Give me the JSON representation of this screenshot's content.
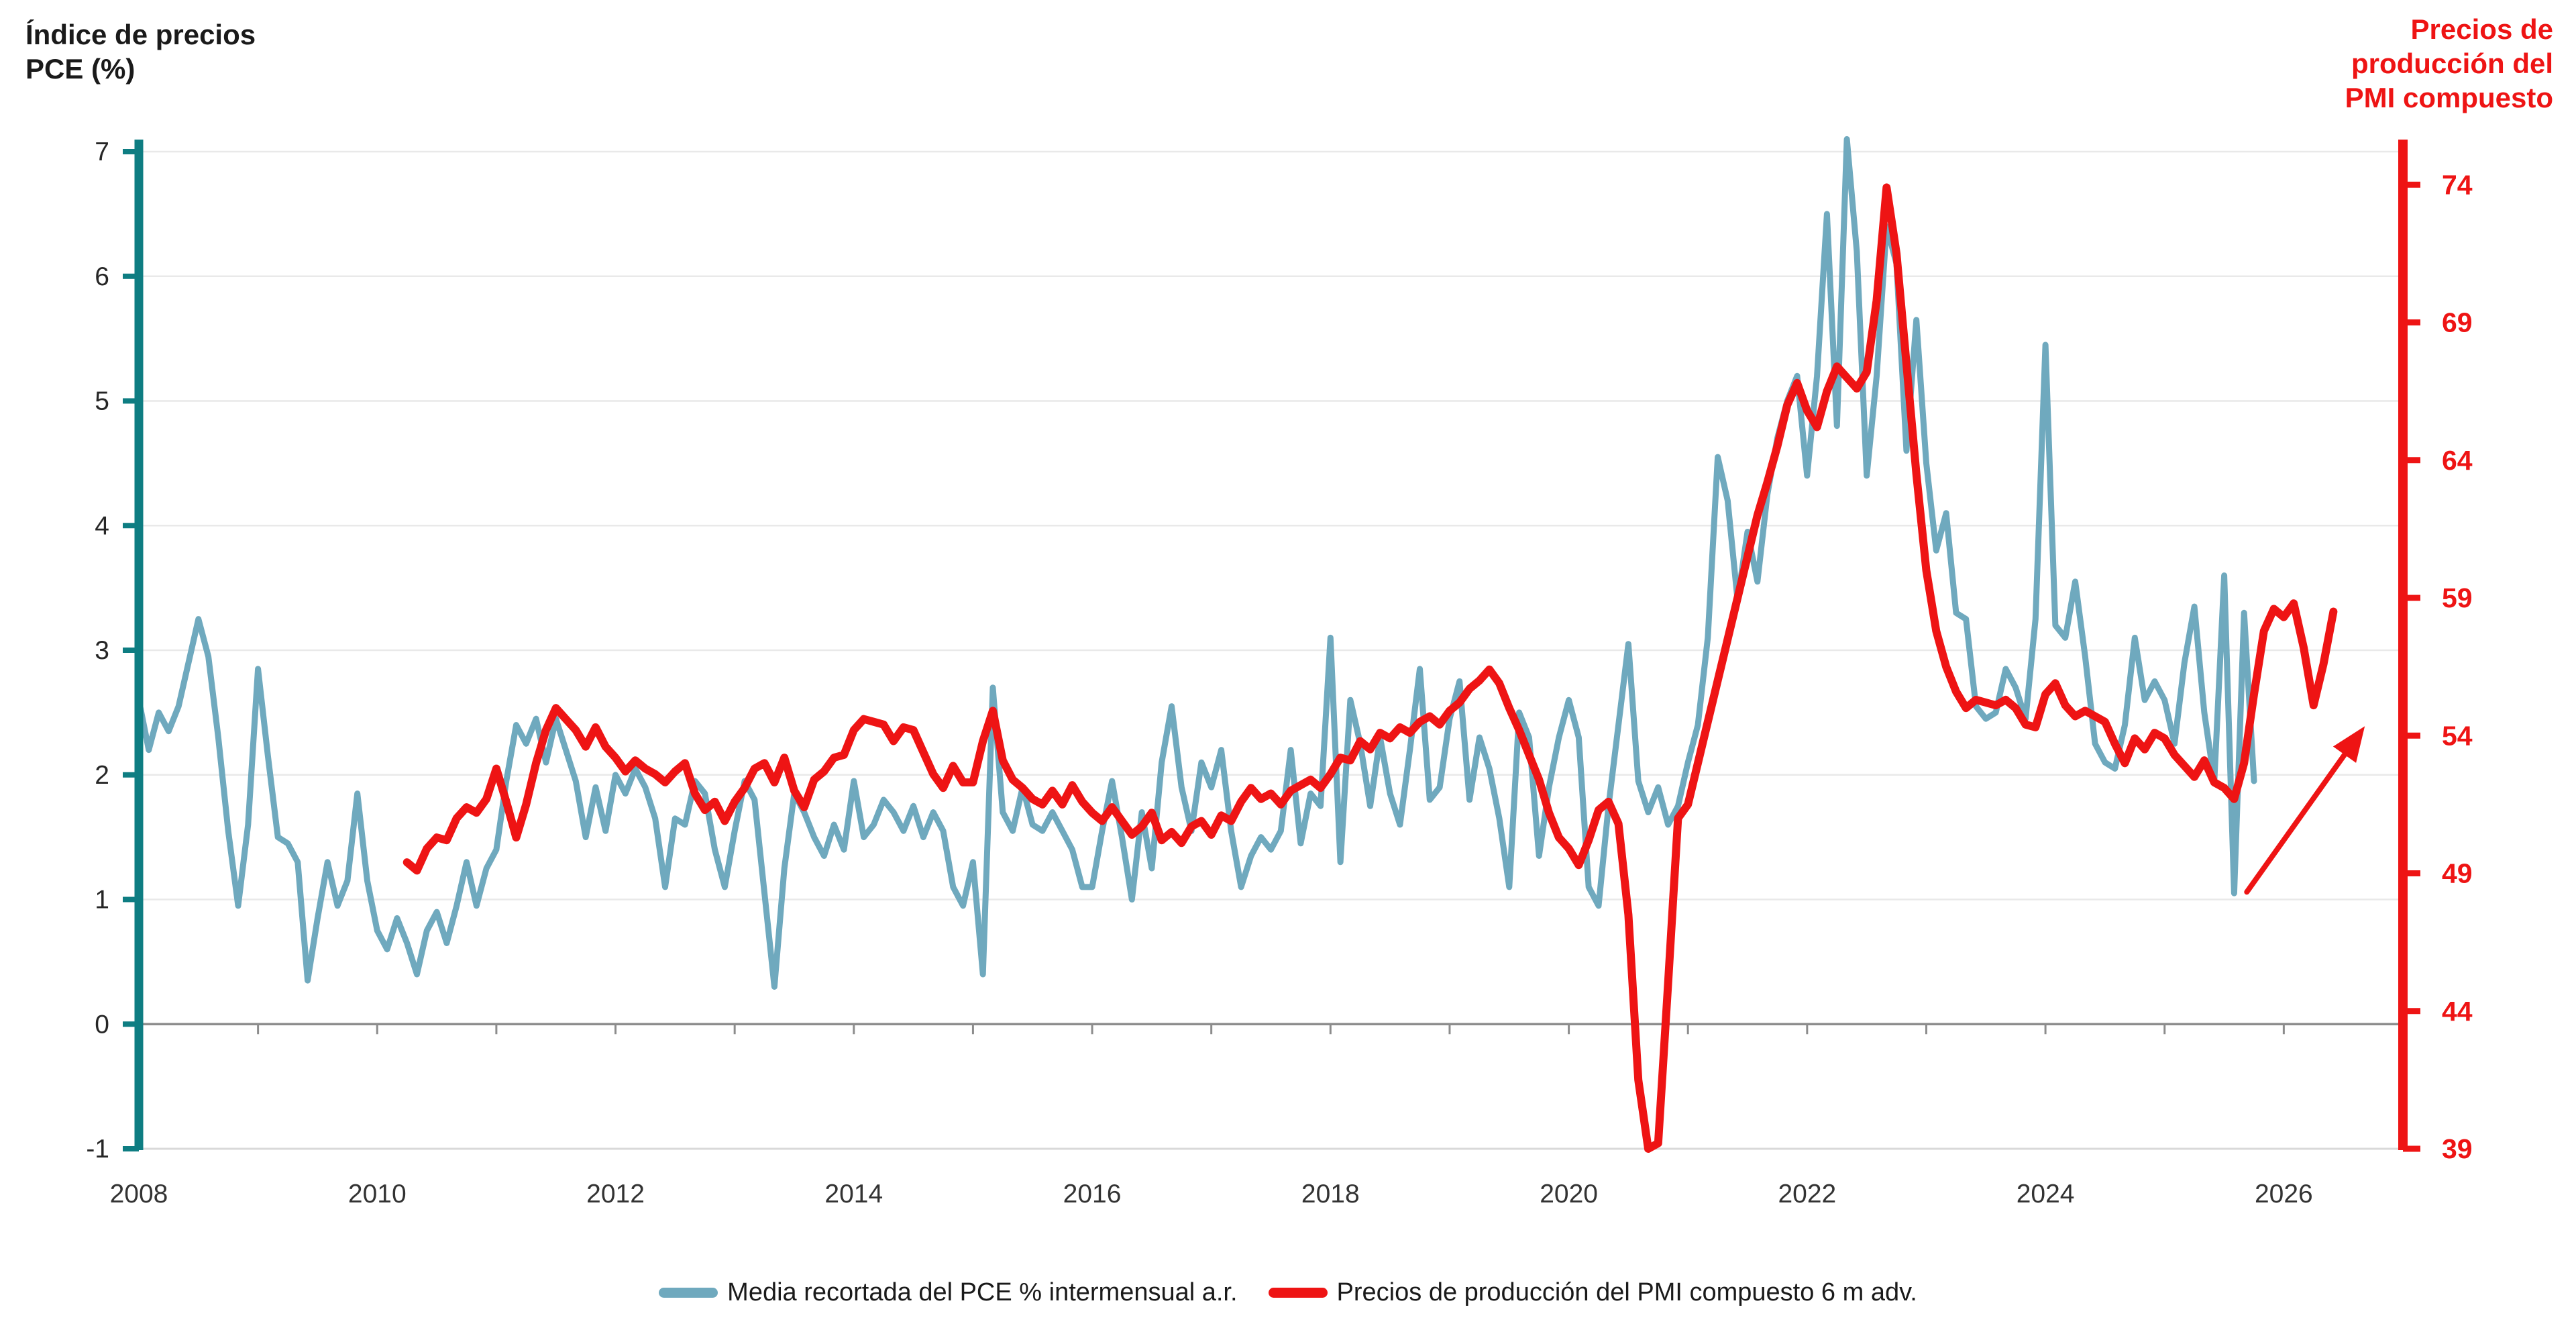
{
  "figure": {
    "background": "#ffffff"
  },
  "titles": {
    "left": [
      "Índice de precios",
      "PCE (%)"
    ],
    "left_color": "#1a1a1a",
    "right": [
      "Precios de",
      "producción del",
      "PMI compuesto"
    ],
    "right_color": "#ee1414"
  },
  "legend": {
    "items": [
      {
        "label": "Media recortada del PCE % intermensual a.r.",
        "color": "#6fa9be"
      },
      {
        "label": "Precios de producción del PMI compuesto 6 m adv.",
        "color": "#ee1414"
      }
    ]
  },
  "chart_data": {
    "type": "line",
    "title": "",
    "x_axis": {
      "range": [
        2008,
        2027
      ],
      "tick_years": [
        2008,
        2010,
        2012,
        2014,
        2016,
        2018,
        2020,
        2022,
        2024,
        2026
      ],
      "tick_labels": [
        "2008",
        "2010",
        "2012",
        "2014",
        "2016",
        "2018",
        "2020",
        "2022",
        "2024",
        "2026"
      ],
      "minor_tick_every_years": 1,
      "axis_line_color": "#d9d9d9"
    },
    "left_axis": {
      "title": "Índice de precios PCE (%)",
      "range": [
        -1,
        7
      ],
      "ticks": [
        7,
        6,
        5,
        4,
        3,
        2,
        1,
        0,
        -1
      ],
      "axis_color": "#0e7d82",
      "label_color": "#262626"
    },
    "right_axis": {
      "title": "Precios de producción del PMI compuesto",
      "range": [
        39,
        75.2
      ],
      "ticks": [
        74,
        69,
        64,
        59,
        54,
        49,
        44,
        39
      ],
      "axis_color": "#ee1414",
      "label_color": "#ee1414"
    },
    "gridlines": {
      "horizontal_left_values": [
        7,
        6,
        5,
        4,
        3,
        2,
        1
      ],
      "color": "#e9e9e9",
      "zero_line_value": 0,
      "zero_line_color": "#8c8c8c"
    },
    "series": [
      {
        "id": "pce",
        "name": "Media recortada del PCE % intermensual a.r.",
        "axis": "left",
        "color": "#6fa9be",
        "stroke_width": 9,
        "start_year": 2008.0,
        "interval_months": 1,
        "values": [
          2.6,
          2.2,
          2.5,
          2.35,
          2.55,
          2.9,
          3.25,
          2.95,
          2.3,
          1.55,
          0.95,
          1.6,
          2.85,
          2.15,
          1.5,
          1.45,
          1.3,
          0.35,
          0.85,
          1.3,
          0.95,
          1.15,
          1.85,
          1.15,
          0.75,
          0.6,
          0.85,
          0.65,
          0.4,
          0.75,
          0.9,
          0.65,
          0.95,
          1.3,
          0.95,
          1.25,
          1.4,
          1.95,
          2.4,
          2.25,
          2.45,
          2.1,
          2.45,
          2.2,
          1.95,
          1.5,
          1.9,
          1.55,
          2.0,
          1.85,
          2.05,
          1.9,
          1.65,
          1.1,
          1.65,
          1.6,
          1.95,
          1.85,
          1.4,
          1.1,
          1.55,
          1.95,
          1.8,
          1.05,
          0.3,
          1.25,
          1.85,
          1.7,
          1.5,
          1.35,
          1.6,
          1.4,
          1.95,
          1.5,
          1.6,
          1.8,
          1.7,
          1.55,
          1.75,
          1.5,
          1.7,
          1.55,
          1.1,
          0.95,
          1.3,
          0.4,
          2.7,
          1.7,
          1.55,
          1.9,
          1.6,
          1.55,
          1.7,
          1.55,
          1.4,
          1.1,
          1.1,
          1.55,
          1.95,
          1.5,
          1.0,
          1.7,
          1.25,
          2.1,
          2.55,
          1.9,
          1.55,
          2.1,
          1.9,
          2.2,
          1.55,
          1.1,
          1.35,
          1.5,
          1.4,
          1.55,
          2.2,
          1.45,
          1.85,
          1.75,
          3.1,
          1.3,
          2.6,
          2.25,
          1.75,
          2.3,
          1.85,
          1.6,
          2.2,
          2.85,
          1.8,
          1.9,
          2.45,
          2.75,
          1.8,
          2.3,
          2.05,
          1.65,
          1.1,
          2.5,
          2.3,
          1.35,
          1.9,
          2.3,
          2.6,
          2.3,
          1.1,
          0.95,
          1.75,
          2.4,
          3.05,
          1.95,
          1.7,
          1.9,
          1.6,
          1.75,
          2.1,
          2.4,
          3.1,
          4.55,
          4.2,
          3.4,
          3.95,
          3.55,
          4.25,
          4.7,
          5.0,
          5.2,
          4.4,
          5.2,
          6.5,
          4.8,
          7.1,
          6.2,
          4.4,
          5.2,
          6.4,
          6.1,
          4.6,
          5.65,
          4.5,
          3.8,
          4.1,
          3.3,
          3.25,
          2.55,
          2.45,
          2.5,
          2.85,
          2.7,
          2.45,
          3.25,
          5.45,
          3.2,
          3.1,
          3.55,
          2.95,
          2.25,
          2.1,
          2.05,
          2.4,
          3.1,
          2.6,
          2.75,
          2.6,
          2.25,
          2.9,
          3.35,
          2.5,
          1.95,
          3.6,
          1.05,
          3.3,
          1.95
        ]
      },
      {
        "id": "pmi",
        "name": "Precios de producción del PMI compuesto 6 m adv.",
        "axis": "right",
        "color": "#ee1414",
        "stroke_width": 12,
        "start_year": 2010.25,
        "interval_months": 1,
        "values": [
          49.4,
          49.1,
          49.9,
          50.3,
          50.2,
          51.0,
          51.4,
          51.2,
          51.7,
          52.8,
          51.6,
          50.3,
          51.5,
          53.0,
          54.2,
          55.0,
          54.6,
          54.2,
          53.6,
          54.3,
          53.6,
          53.2,
          52.7,
          53.1,
          52.8,
          52.6,
          52.3,
          52.7,
          53.0,
          51.9,
          51.3,
          51.6,
          50.9,
          51.6,
          52.1,
          52.8,
          53.0,
          52.3,
          53.2,
          52.0,
          51.4,
          52.4,
          52.7,
          53.2,
          53.3,
          54.2,
          54.6,
          54.5,
          54.4,
          53.8,
          54.3,
          54.2,
          53.4,
          52.6,
          52.1,
          52.9,
          52.3,
          52.3,
          53.8,
          54.9,
          53.1,
          52.4,
          52.1,
          51.7,
          51.5,
          52.0,
          51.5,
          52.2,
          51.6,
          51.2,
          50.9,
          51.4,
          50.9,
          50.4,
          50.7,
          51.2,
          50.2,
          50.5,
          50.1,
          50.7,
          50.9,
          50.4,
          51.1,
          50.9,
          51.6,
          52.1,
          51.7,
          51.9,
          51.5,
          52.0,
          52.2,
          52.4,
          52.1,
          52.6,
          53.2,
          53.1,
          53.8,
          53.5,
          54.1,
          53.9,
          54.3,
          54.1,
          54.5,
          54.7,
          54.4,
          54.9,
          55.2,
          55.7,
          56.0,
          56.4,
          55.9,
          55.0,
          54.2,
          53.3,
          52.4,
          51.2,
          50.3,
          49.9,
          49.3,
          50.2,
          51.3,
          51.6,
          50.8,
          47.5,
          41.5,
          39.0,
          39.2,
          45.0,
          51.0,
          51.5,
          53.0,
          54.5,
          56.0,
          57.5,
          59.0,
          60.5,
          62.0,
          63.2,
          64.5,
          66.0,
          66.8,
          65.8,
          65.2,
          66.5,
          67.4,
          67.0,
          66.6,
          67.2,
          69.8,
          73.9,
          71.5,
          67.5,
          63.5,
          60.0,
          57.8,
          56.5,
          55.6,
          55.0,
          55.3,
          55.2,
          55.1,
          55.3,
          55.0,
          54.4,
          54.3,
          55.5,
          55.9,
          55.1,
          54.7,
          54.9,
          54.7,
          54.5,
          53.7,
          53.0,
          53.9,
          53.5,
          54.1,
          53.9,
          53.3,
          52.9,
          52.5,
          53.1,
          52.3,
          52.1,
          51.7,
          53.0,
          55.5,
          57.8,
          58.6,
          58.3,
          58.8,
          57.2,
          55.1,
          56.6,
          58.5
        ]
      }
    ],
    "annotation_arrow": {
      "from_x": 2025.69,
      "from_y_left": 1.06,
      "to_x": 2026.68,
      "to_y_left": 2.39,
      "color": "#ee1414"
    },
    "legend_position": "bottom-center",
    "grid": "horizontal-only"
  }
}
